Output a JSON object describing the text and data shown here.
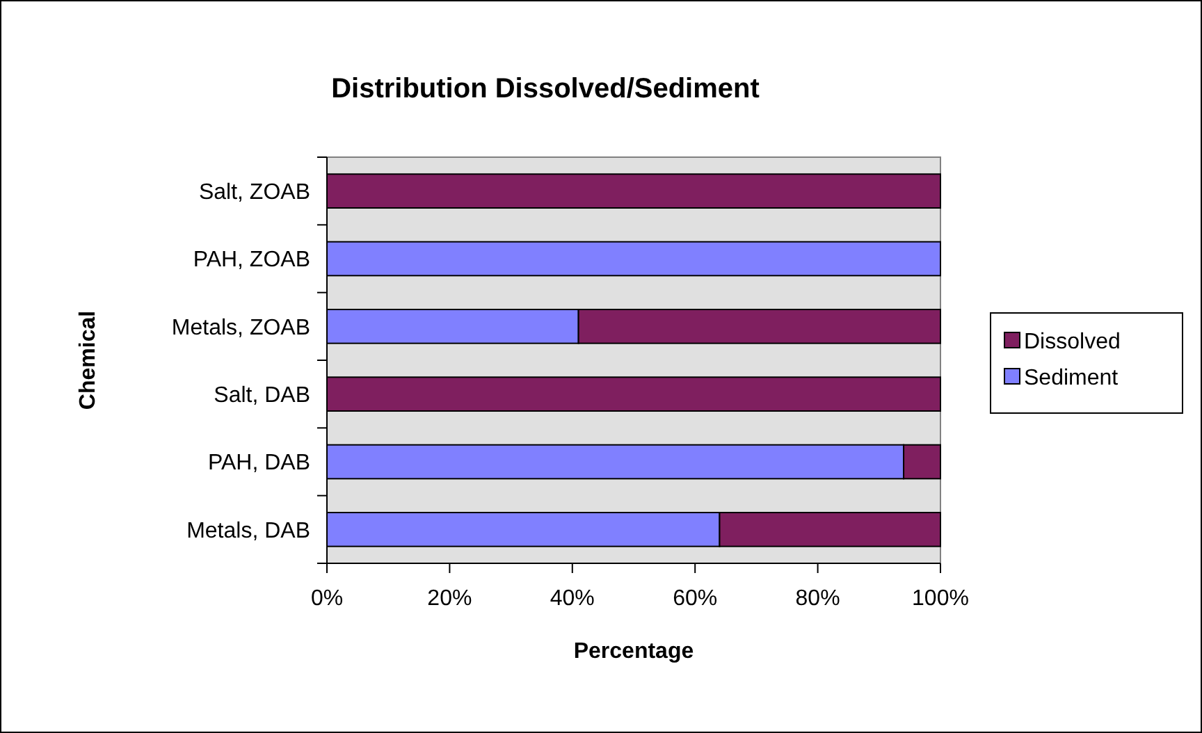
{
  "chart_data": {
    "type": "bar",
    "orientation": "horizontal",
    "stacked": true,
    "title": "Distribution Dissolved/Sediment",
    "xlabel": "Percentage",
    "ylabel": "Chemical",
    "categories": [
      "Salt, ZOAB",
      "PAH, ZOAB",
      "Metals, ZOAB",
      "Salt, DAB",
      "PAH, DAB",
      "Metals, DAB"
    ],
    "series": [
      {
        "name": "Sediment",
        "color": "#8080ff",
        "values": [
          0,
          100,
          41,
          0,
          94,
          64
        ]
      },
      {
        "name": "Dissolved",
        "color": "#7f1f5f",
        "values": [
          100,
          0,
          59,
          100,
          6,
          36
        ]
      }
    ],
    "xlim": [
      0,
      100
    ],
    "xticks": [
      {
        "value": 0,
        "label": "0%"
      },
      {
        "value": 20,
        "label": "20%"
      },
      {
        "value": 40,
        "label": "40%"
      },
      {
        "value": 60,
        "label": "60%"
      },
      {
        "value": 80,
        "label": "80%"
      },
      {
        "value": 100,
        "label": "100%"
      }
    ],
    "grid": false,
    "legend": "right"
  }
}
